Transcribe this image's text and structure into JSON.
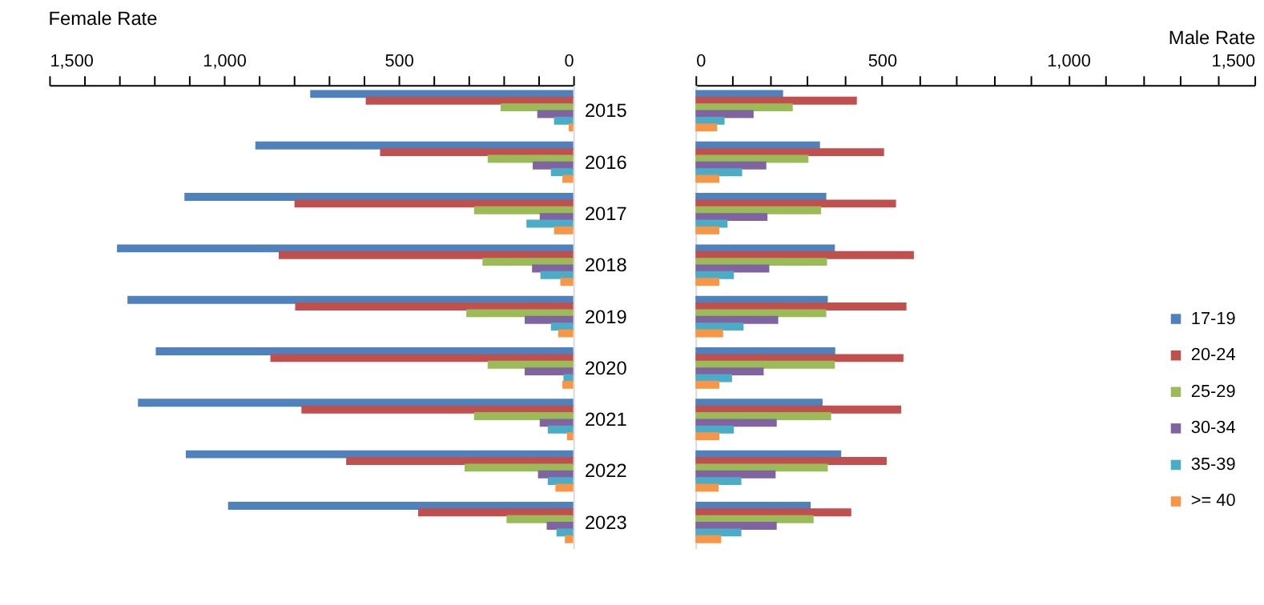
{
  "chart_data": [
    {
      "type": "bar",
      "orientation": "horizontal",
      "title": "Female Rate",
      "grid": false,
      "legend": false,
      "categories": [
        "2015",
        "2016",
        "2017",
        "2018",
        "2019",
        "2020",
        "2021",
        "2022",
        "2023"
      ],
      "xlim": [
        1500,
        0
      ],
      "xticks": [
        {
          "value": 1500,
          "label": "1,500"
        },
        {
          "value": 1400,
          "label": null
        },
        {
          "value": 1300,
          "label": null
        },
        {
          "value": 1200,
          "label": null
        },
        {
          "value": 1100,
          "label": null
        },
        {
          "value": 1000,
          "label": "1,000"
        },
        {
          "value": 900,
          "label": null
        },
        {
          "value": 800,
          "label": null
        },
        {
          "value": 700,
          "label": null
        },
        {
          "value": 600,
          "label": null
        },
        500,
        {
          "value": 400,
          "label": null
        },
        {
          "value": 300,
          "label": null
        },
        {
          "value": 200,
          "label": null
        },
        {
          "value": 100,
          "label": null
        },
        0
      ],
      "series": [
        {
          "color": "#4f81bd",
          "values": [
            753,
            910,
            1113,
            1306,
            1276,
            1195,
            1246,
            1109,
            988
          ]
        },
        {
          "color": "#c0504d",
          "values": [
            594,
            553,
            798,
            843,
            796,
            867,
            778,
            650,
            444
          ]
        },
        {
          "color": "#9bbb59",
          "values": [
            208,
            245,
            284,
            260,
            306,
            245,
            284,
            311,
            191
          ]
        },
        {
          "color": "#8064a2",
          "values": [
            103,
            116,
            96,
            118,
            139,
            139,
            96,
            101,
            76
          ]
        },
        {
          "color": "#4bacc6",
          "values": [
            55,
            64,
            134,
            94,
            64,
            28,
            73,
            73,
            48
          ]
        },
        {
          "color": "#f79646",
          "values": [
            13,
            31,
            55,
            37,
            43,
            31,
            18,
            51,
            24
          ]
        }
      ]
    },
    {
      "type": "bar",
      "orientation": "horizontal",
      "title": "Male Rate",
      "grid": false,
      "legend": "bottom right",
      "tick_labels": "x",
      "categories": [
        "2015",
        "2016",
        "2017",
        "2018",
        "2019",
        "2020",
        "2021",
        "2022",
        "2023"
      ],
      "xlim": [
        0,
        1500
      ],
      "xticks": [
        0,
        {
          "value": 100,
          "label": null
        },
        {
          "value": 200,
          "label": null
        },
        {
          "value": 300,
          "label": null
        },
        {
          "value": 400,
          "label": null
        },
        500,
        {
          "value": 600,
          "label": null
        },
        {
          "value": 700,
          "label": null
        },
        {
          "value": 800,
          "label": null
        },
        {
          "value": 900,
          "label": null
        },
        {
          "value": 1000,
          "label": "1,000"
        },
        {
          "value": 1100,
          "label": null
        },
        {
          "value": 1200,
          "label": null
        },
        {
          "value": 1300,
          "label": null
        },
        {
          "value": 1400,
          "label": null
        },
        {
          "value": 1500,
          "label": "1,500"
        }
      ],
      "series": [
        {
          "name": "17-19",
          "color": "#4f81bd",
          "values": [
            235,
            334,
            351,
            374,
            355,
            375,
            341,
            391,
            309
          ]
        },
        {
          "name": "20-24",
          "color": "#c0504d",
          "values": [
            433,
            506,
            538,
            586,
            566,
            558,
            552,
            513,
            418
          ]
        },
        {
          "name": "25-29",
          "color": "#9bbb59",
          "values": [
            261,
            303,
            337,
            353,
            351,
            374,
            364,
            355,
            317
          ]
        },
        {
          "name": "30-34",
          "color": "#8064a2",
          "values": [
            156,
            190,
            193,
            198,
            222,
            183,
            218,
            215,
            218
          ]
        },
        {
          "name": "35-39",
          "color": "#4bacc6",
          "values": [
            78,
            125,
            86,
            103,
            129,
            98,
            103,
            123,
            123
          ]
        },
        {
          "name": ">= 40",
          "color": "#f79646",
          "values": [
            58,
            64,
            64,
            64,
            74,
            64,
            64,
            62,
            69
          ]
        }
      ]
    }
  ]
}
